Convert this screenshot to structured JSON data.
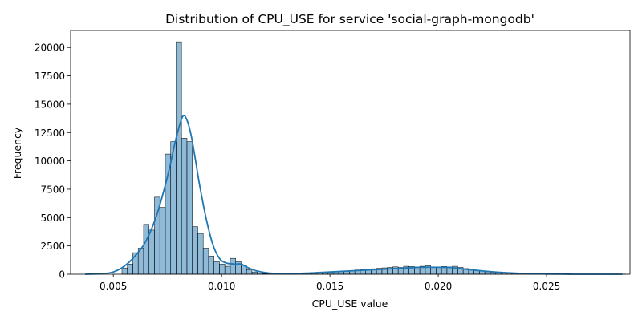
{
  "chart_data": {
    "type": "bar",
    "title": "Distribution of CPU_USE for service 'social-graph-mongodb'",
    "xlabel": "CPU_USE value",
    "ylabel": "Frequency",
    "xlim": [
      0.00303,
      0.02885
    ],
    "ylim": [
      0,
      21500
    ],
    "xticks": [
      0.005,
      0.01,
      0.015,
      0.02,
      0.025
    ],
    "xtick_labels": [
      "0.005",
      "0.010",
      "0.015",
      "0.020",
      "0.025"
    ],
    "yticks": [
      0,
      2500,
      5000,
      7500,
      10000,
      12500,
      15000,
      17500,
      20000
    ],
    "ytick_labels": [
      "0",
      "2500",
      "5000",
      "7500",
      "10000",
      "12500",
      "15000",
      "17500",
      "20000"
    ],
    "grid": false,
    "legend": "none",
    "bar_color": "#1f77b4",
    "bar_fill_opacity": 0.5,
    "kde_color": "#1f77b4",
    "histogram": {
      "bin_start": 0.00365,
      "bin_width": 0.00025,
      "counts": [
        0,
        0,
        0,
        0,
        0,
        0,
        0,
        550,
        900,
        1900,
        2300,
        4400,
        3900,
        6800,
        5900,
        10600,
        11700,
        20500,
        12000,
        11700,
        4200,
        3600,
        2300,
        1600,
        1100,
        900,
        700,
        1400,
        1100,
        800,
        400,
        200,
        100,
        50,
        30,
        20,
        20,
        20,
        30,
        30,
        40,
        60,
        80,
        100,
        120,
        150,
        200,
        250,
        280,
        330,
        380,
        420,
        450,
        480,
        520,
        560,
        600,
        650,
        600,
        700,
        680,
        640,
        700,
        760,
        650,
        620,
        680,
        640,
        700,
        600,
        500,
        420,
        350,
        280,
        220,
        180,
        140,
        110,
        90,
        70,
        60,
        50,
        40,
        30,
        20,
        20,
        15,
        10,
        10,
        10,
        10,
        5,
        5,
        5,
        5,
        5,
        5,
        5,
        5,
        5
      ]
    },
    "kde": {
      "x": [
        0.0037,
        0.0045,
        0.005,
        0.0055,
        0.006,
        0.0065,
        0.007,
        0.0075,
        0.0079,
        0.0082,
        0.0084,
        0.0086,
        0.0088,
        0.009,
        0.0093,
        0.0096,
        0.0099,
        0.0102,
        0.0106,
        0.0109,
        0.0112,
        0.0116,
        0.0122,
        0.013,
        0.014,
        0.015,
        0.016,
        0.017,
        0.018,
        0.019,
        0.0195,
        0.0205,
        0.021,
        0.022,
        0.023,
        0.024,
        0.025,
        0.026,
        0.027,
        0.0285
      ],
      "y": [
        0,
        50,
        200,
        700,
        1600,
        2900,
        5200,
        8600,
        12000,
        13900,
        13600,
        12200,
        10000,
        7700,
        4800,
        2600,
        1400,
        1000,
        900,
        900,
        600,
        300,
        100,
        50,
        100,
        200,
        300,
        400,
        500,
        600,
        620,
        600,
        500,
        300,
        150,
        60,
        20,
        5,
        0,
        0
      ]
    }
  }
}
